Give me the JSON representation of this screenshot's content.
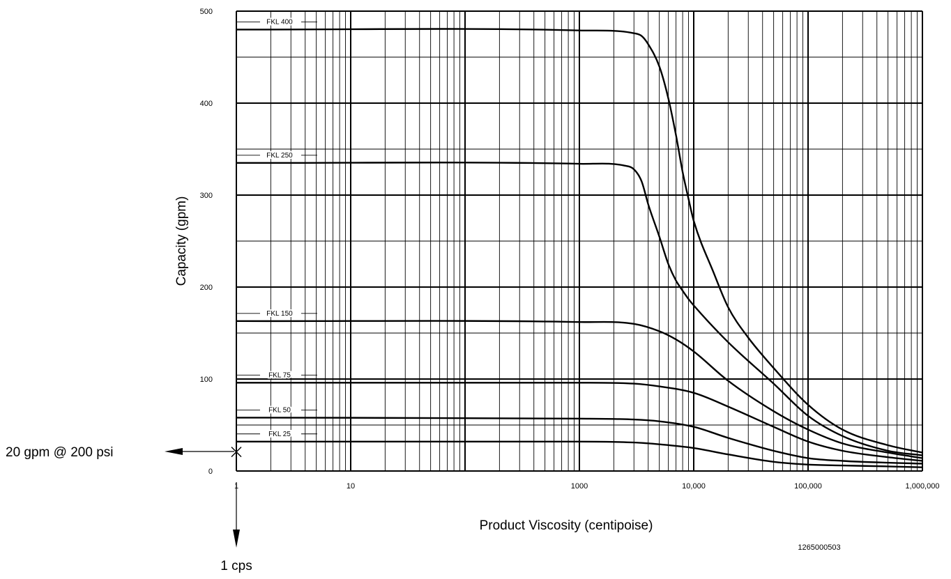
{
  "chart_data": {
    "type": "line",
    "xlabel": "Product Viscosity (centipoise)",
    "ylabel": "Capacity (gpm)",
    "x_scale": "log",
    "xlim": [
      1,
      1000000
    ],
    "ylim": [
      0,
      500
    ],
    "x_ticks": [
      {
        "value": 1,
        "label": "1"
      },
      {
        "value": 10,
        "label": "10"
      },
      {
        "value": 1000,
        "label": "1000"
      },
      {
        "value": 10000,
        "label": "10,000"
      },
      {
        "value": 100000,
        "label": "100,000"
      },
      {
        "value": 1000000,
        "label": "1,000,000"
      }
    ],
    "y_ticks": [
      {
        "value": 0,
        "label": "0"
      },
      {
        "value": 100,
        "label": "100"
      },
      {
        "value": 200,
        "label": "200"
      },
      {
        "value": 300,
        "label": "300"
      },
      {
        "value": 400,
        "label": "400"
      },
      {
        "value": 500,
        "label": "500"
      }
    ],
    "grid": true,
    "series": [
      {
        "name": "FKL 400",
        "x": [
          1,
          1000,
          3000,
          3500,
          4000,
          5000,
          6000,
          7000,
          8000,
          9000,
          10000,
          15000,
          20000,
          30000,
          50000,
          100000,
          200000,
          500000,
          1000000
        ],
        "y": [
          480,
          479,
          476,
          473,
          464,
          440,
          405,
          365,
          325,
          296,
          272,
          215,
          178,
          145,
          112,
          72,
          45,
          28,
          20
        ]
      },
      {
        "name": "FKL 250",
        "x": [
          1,
          1000,
          2500,
          3000,
          3500,
          4000,
          5000,
          6000,
          7000,
          8000,
          9000,
          10000,
          20000,
          50000,
          100000,
          200000,
          500000,
          1000000
        ],
        "y": [
          335,
          334,
          332,
          328,
          315,
          290,
          255,
          225,
          207,
          196,
          187,
          180,
          140,
          95,
          60,
          38,
          22,
          17
        ]
      },
      {
        "name": "FKL 150",
        "x": [
          1,
          1000,
          3000,
          5000,
          7000,
          10000,
          20000,
          50000,
          100000,
          200000,
          500000,
          1000000
        ],
        "y": [
          163,
          162,
          160,
          152,
          143,
          130,
          98,
          65,
          45,
          30,
          20,
          14
        ]
      },
      {
        "name": "FKL 75",
        "x": [
          1,
          1000,
          3000,
          5000,
          10000,
          20000,
          50000,
          100000,
          200000,
          500000,
          1000000
        ],
        "y": [
          96,
          96,
          95,
          92,
          85,
          70,
          48,
          32,
          22,
          15,
          11
        ]
      },
      {
        "name": "FKL 50",
        "x": [
          1,
          1000,
          3000,
          5000,
          10000,
          20000,
          50000,
          100000,
          200000,
          500000,
          1000000
        ],
        "y": [
          58,
          57,
          56,
          54,
          48,
          36,
          22,
          14,
          11,
          9,
          8
        ]
      },
      {
        "name": "FKL 25",
        "x": [
          1,
          1000,
          3000,
          5000,
          10000,
          20000,
          50000,
          100000,
          200000,
          500000,
          1000000
        ],
        "y": [
          32,
          32,
          31,
          29,
          25,
          18,
          10,
          7,
          6,
          5,
          4
        ]
      }
    ],
    "annotations": {
      "point": {
        "x": 1,
        "y": 20
      },
      "y_callout": "20 gpm @ 200 psi",
      "x_callout": "1 cps",
      "code": "1265000503"
    }
  }
}
